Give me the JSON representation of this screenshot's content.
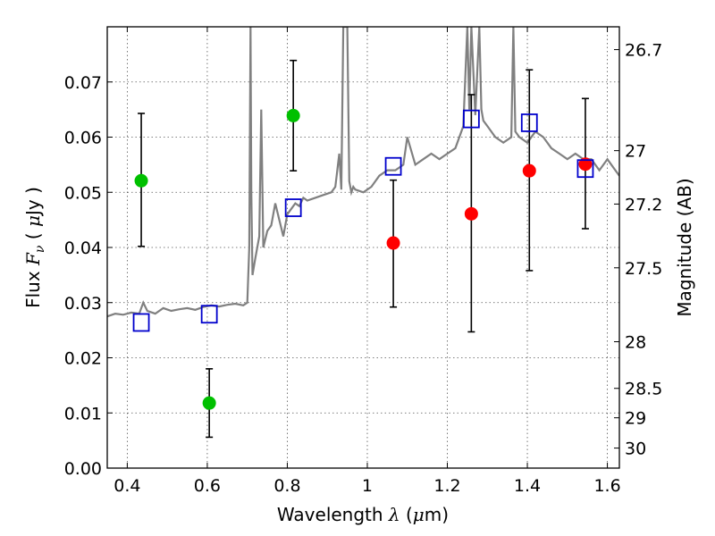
{
  "chart_data": {
    "type": "scatter",
    "title": "",
    "xlabel_parts": [
      "Wavelength ",
      "λ",
      " (",
      "μ",
      "m)"
    ],
    "ylabel_parts": [
      "Flux ",
      "F",
      "ν",
      " ( ",
      "μ",
      "Jy )"
    ],
    "y2label": "Magnitude (AB)",
    "xlim": [
      0.35,
      1.63
    ],
    "ylim": [
      0.0,
      0.08
    ],
    "grid": true,
    "x_ticks": [
      {
        "value": 0.4,
        "label": "0.4"
      },
      {
        "value": 0.6,
        "label": "0.6"
      },
      {
        "value": 0.8,
        "label": "0.8"
      },
      {
        "value": 1.0,
        "label": "1"
      },
      {
        "value": 1.2,
        "label": "1.2"
      },
      {
        "value": 1.4,
        "label": "1.4"
      },
      {
        "value": 1.6,
        "label": "1.6"
      }
    ],
    "y_ticks": [
      {
        "value": 0.0,
        "label": "0.00"
      },
      {
        "value": 0.01,
        "label": "0.01"
      },
      {
        "value": 0.02,
        "label": "0.02"
      },
      {
        "value": 0.03,
        "label": "0.03"
      },
      {
        "value": 0.04,
        "label": "0.04"
      },
      {
        "value": 0.05,
        "label": "0.05"
      },
      {
        "value": 0.06,
        "label": "0.06"
      },
      {
        "value": 0.07,
        "label": "0.07"
      }
    ],
    "y2_ticks": [
      {
        "value": 26.7,
        "label": "26.7"
      },
      {
        "value": 27.0,
        "label": "27"
      },
      {
        "value": 27.2,
        "label": "27.2"
      },
      {
        "value": 27.5,
        "label": "27.5"
      },
      {
        "value": 28.0,
        "label": "28"
      },
      {
        "value": 28.5,
        "label": "28.5"
      },
      {
        "value": 29.0,
        "label": "29"
      },
      {
        "value": 30.0,
        "label": "30"
      }
    ],
    "colors": {
      "spectrum": "#808080",
      "green": "#00c000",
      "red": "#ff0000",
      "model_box": "#0000cc",
      "errorbar": "#000000"
    },
    "spectrum": {
      "x": [
        0.35,
        0.37,
        0.39,
        0.41,
        0.43,
        0.44,
        0.45,
        0.47,
        0.49,
        0.51,
        0.53,
        0.55,
        0.57,
        0.59,
        0.61,
        0.63,
        0.65,
        0.67,
        0.69,
        0.7,
        0.705,
        0.708,
        0.71,
        0.713,
        0.72,
        0.73,
        0.735,
        0.74,
        0.75,
        0.76,
        0.77,
        0.78,
        0.79,
        0.8,
        0.81,
        0.82,
        0.83,
        0.84,
        0.85,
        0.87,
        0.89,
        0.91,
        0.92,
        0.93,
        0.935,
        0.94,
        0.95,
        0.955,
        0.96,
        0.965,
        0.97,
        0.99,
        1.01,
        1.03,
        1.05,
        1.07,
        1.09,
        1.1,
        1.12,
        1.14,
        1.16,
        1.18,
        1.2,
        1.22,
        1.24,
        1.25,
        1.255,
        1.26,
        1.27,
        1.28,
        1.285,
        1.29,
        1.3,
        1.32,
        1.34,
        1.36,
        1.365,
        1.37,
        1.38,
        1.4,
        1.42,
        1.44,
        1.46,
        1.48,
        1.5,
        1.52,
        1.54,
        1.56,
        1.58,
        1.6,
        1.62,
        1.63
      ],
      "y": [
        0.0275,
        0.028,
        0.0278,
        0.0282,
        0.028,
        0.03,
        0.0285,
        0.028,
        0.029,
        0.0285,
        0.0288,
        0.029,
        0.0287,
        0.0292,
        0.0295,
        0.0293,
        0.0296,
        0.0298,
        0.0295,
        0.03,
        0.04,
        0.08,
        0.05,
        0.035,
        0.038,
        0.042,
        0.065,
        0.04,
        0.043,
        0.044,
        0.048,
        0.045,
        0.042,
        0.046,
        0.047,
        0.048,
        0.0475,
        0.049,
        0.0485,
        0.049,
        0.0495,
        0.05,
        0.051,
        0.057,
        0.0505,
        0.08,
        0.08,
        0.052,
        0.05,
        0.051,
        0.0505,
        0.05,
        0.051,
        0.053,
        0.054,
        0.054,
        0.055,
        0.06,
        0.055,
        0.056,
        0.057,
        0.056,
        0.057,
        0.058,
        0.062,
        0.08,
        0.065,
        0.08,
        0.064,
        0.08,
        0.065,
        0.063,
        0.062,
        0.06,
        0.059,
        0.06,
        0.08,
        0.061,
        0.06,
        0.059,
        0.061,
        0.06,
        0.058,
        0.057,
        0.056,
        0.057,
        0.056,
        0.056,
        0.054,
        0.056,
        0.054,
        0.053
      ]
    },
    "series": [
      {
        "marker": "circle",
        "color_key": "green",
        "points": [
          {
            "x": 0.435,
            "y": 0.0521,
            "err_low": 0.0402,
            "err_high": 0.0643
          },
          {
            "x": 0.605,
            "y": 0.0118,
            "err_low": 0.0056,
            "err_high": 0.018
          },
          {
            "x": 0.815,
            "y": 0.0639,
            "err_low": 0.0539,
            "err_high": 0.0739
          }
        ]
      },
      {
        "marker": "circle",
        "color_key": "red",
        "points": [
          {
            "x": 1.065,
            "y": 0.0408,
            "err_low": 0.0292,
            "err_high": 0.0522
          },
          {
            "x": 1.26,
            "y": 0.0461,
            "err_low": 0.0247,
            "err_high": 0.0677
          },
          {
            "x": 1.405,
            "y": 0.0539,
            "err_low": 0.0358,
            "err_high": 0.0722
          },
          {
            "x": 1.545,
            "y": 0.0551,
            "err_low": 0.0434,
            "err_high": 0.067
          }
        ]
      },
      {
        "marker": "open-square",
        "color_key": "model_box",
        "points": [
          {
            "x": 0.435,
            "y": 0.0264
          },
          {
            "x": 0.605,
            "y": 0.0279
          },
          {
            "x": 0.815,
            "y": 0.0472
          },
          {
            "x": 1.065,
            "y": 0.0547
          },
          {
            "x": 1.26,
            "y": 0.0633
          },
          {
            "x": 1.405,
            "y": 0.0626
          },
          {
            "x": 1.545,
            "y": 0.0543
          }
        ]
      }
    ]
  }
}
